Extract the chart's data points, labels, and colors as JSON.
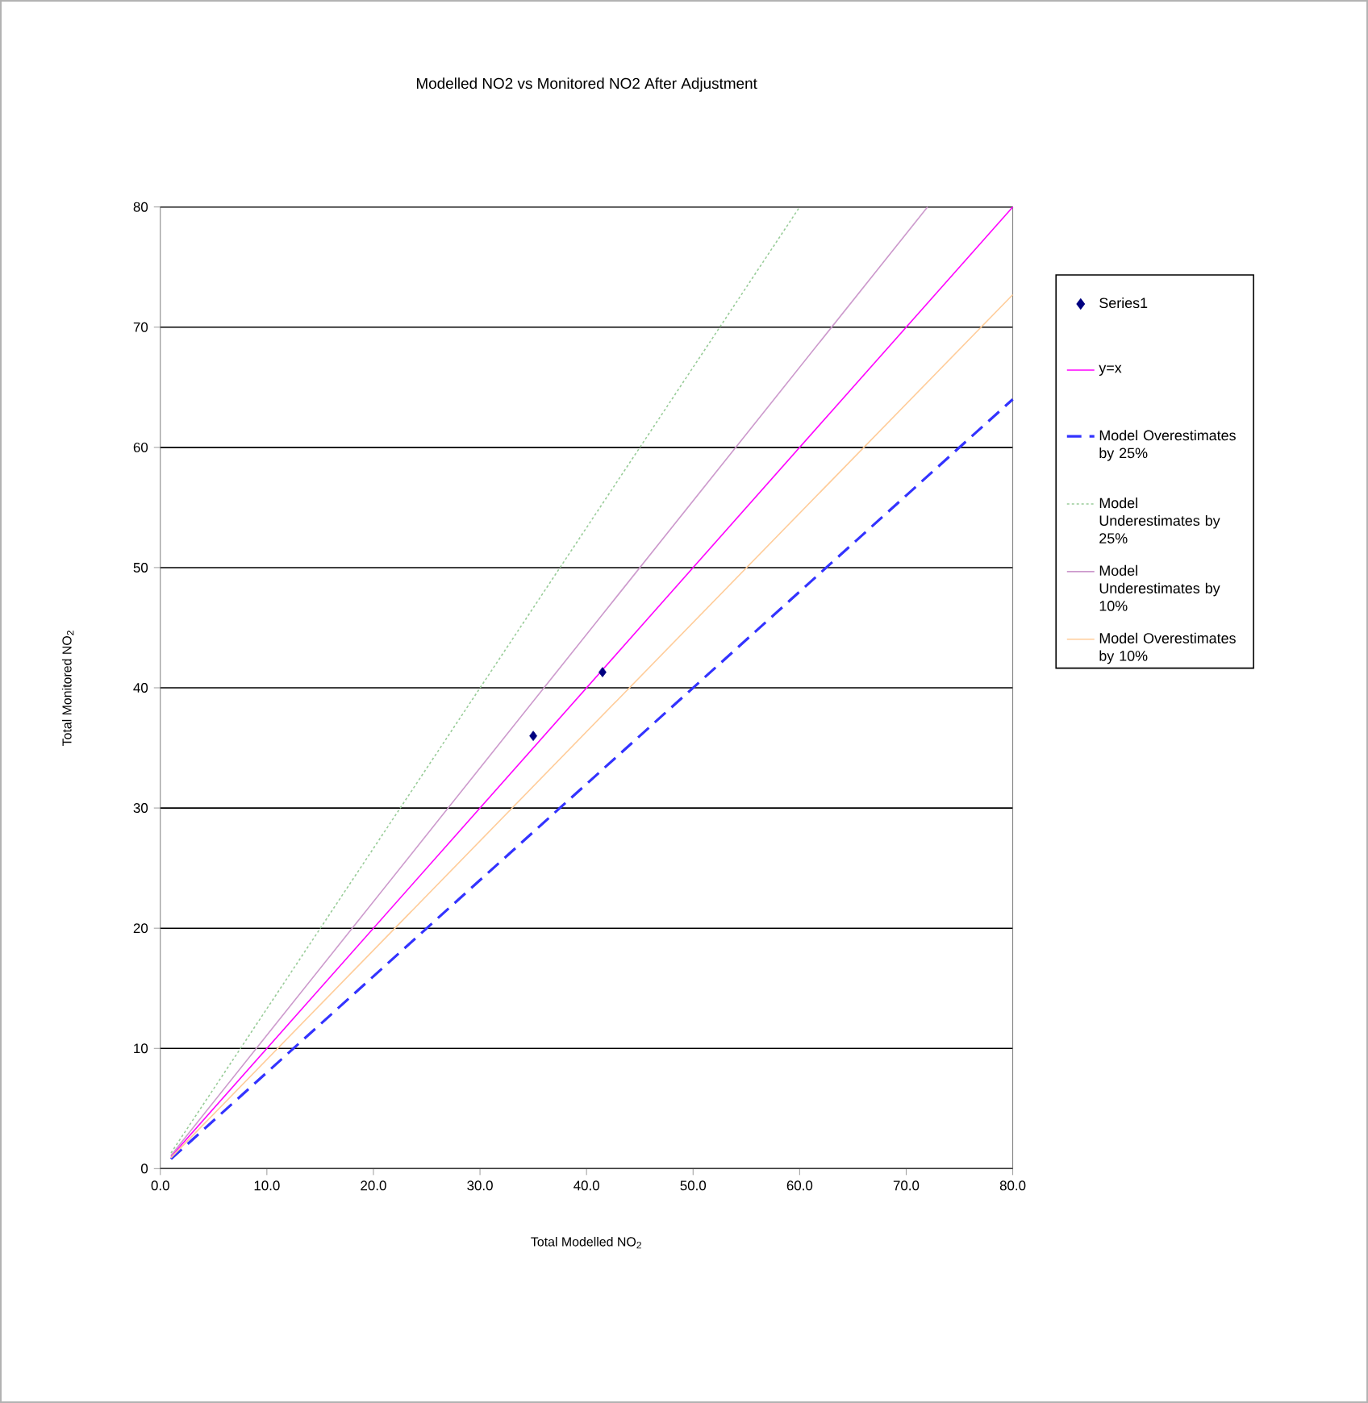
{
  "chart_data": {
    "type": "scatter",
    "title": "Modelled  NO2  vs Monitored  NO2  After Adjustment",
    "xlabel": "Total Modelled  NO$_{2}$",
    "ylabel": "Total Monitored  NO$_{2}$",
    "xlim": [
      0,
      80
    ],
    "ylim": [
      0,
      80
    ],
    "xticks": [
      {
        "value": 0,
        "label": "0.0"
      },
      {
        "value": 10,
        "label": "10.0"
      },
      {
        "value": 20,
        "label": "20.0"
      },
      {
        "value": 30,
        "label": "30.0"
      },
      {
        "value": 40,
        "label": "40.0"
      },
      {
        "value": 50,
        "label": "50.0"
      },
      {
        "value": 60,
        "label": "60.0"
      },
      {
        "value": 70,
        "label": "70.0"
      },
      {
        "value": 80,
        "label": "80.0"
      }
    ],
    "yticks": [
      0,
      10,
      20,
      30,
      40,
      50,
      60,
      70,
      80
    ],
    "grid": "y",
    "legend": "right",
    "series": [
      {
        "name": "Series1",
        "color": "#000080",
        "marker": "diamond",
        "x": [
          35,
          41.5
        ],
        "values": [
          36,
          41.3
        ]
      },
      {
        "name": "y=x",
        "type": "line",
        "color": "#ff00ff",
        "marker": "none",
        "line_style": "solid",
        "x": [
          1,
          80
        ],
        "values": [
          1,
          80
        ]
      },
      {
        "name": "Model Overestimates by 25%",
        "type": "line",
        "color": "#3333ff",
        "marker": "none",
        "line_style": "dashed",
        "x": [
          1,
          80
        ],
        "values": [
          0.8,
          64
        ]
      },
      {
        "name": "Model Underestimates by 25%",
        "type": "line",
        "color": "#99cc99",
        "marker": "none",
        "line_style": "dotted",
        "x": [
          1,
          60
        ],
        "values": [
          1.3,
          80
        ]
      },
      {
        "name": "Model Underestimates by 10%",
        "type": "line",
        "color": "#cc99cc",
        "marker": "none",
        "line_style": "solid",
        "x": [
          1,
          72
        ],
        "values": [
          1.1,
          80
        ]
      },
      {
        "name": "Model Overestimates by 10%",
        "type": "line",
        "color": "#ffcc99",
        "marker": "none",
        "line_style": "solid",
        "x": [
          1,
          80
        ],
        "values": [
          0.9,
          72.7
        ]
      }
    ]
  }
}
